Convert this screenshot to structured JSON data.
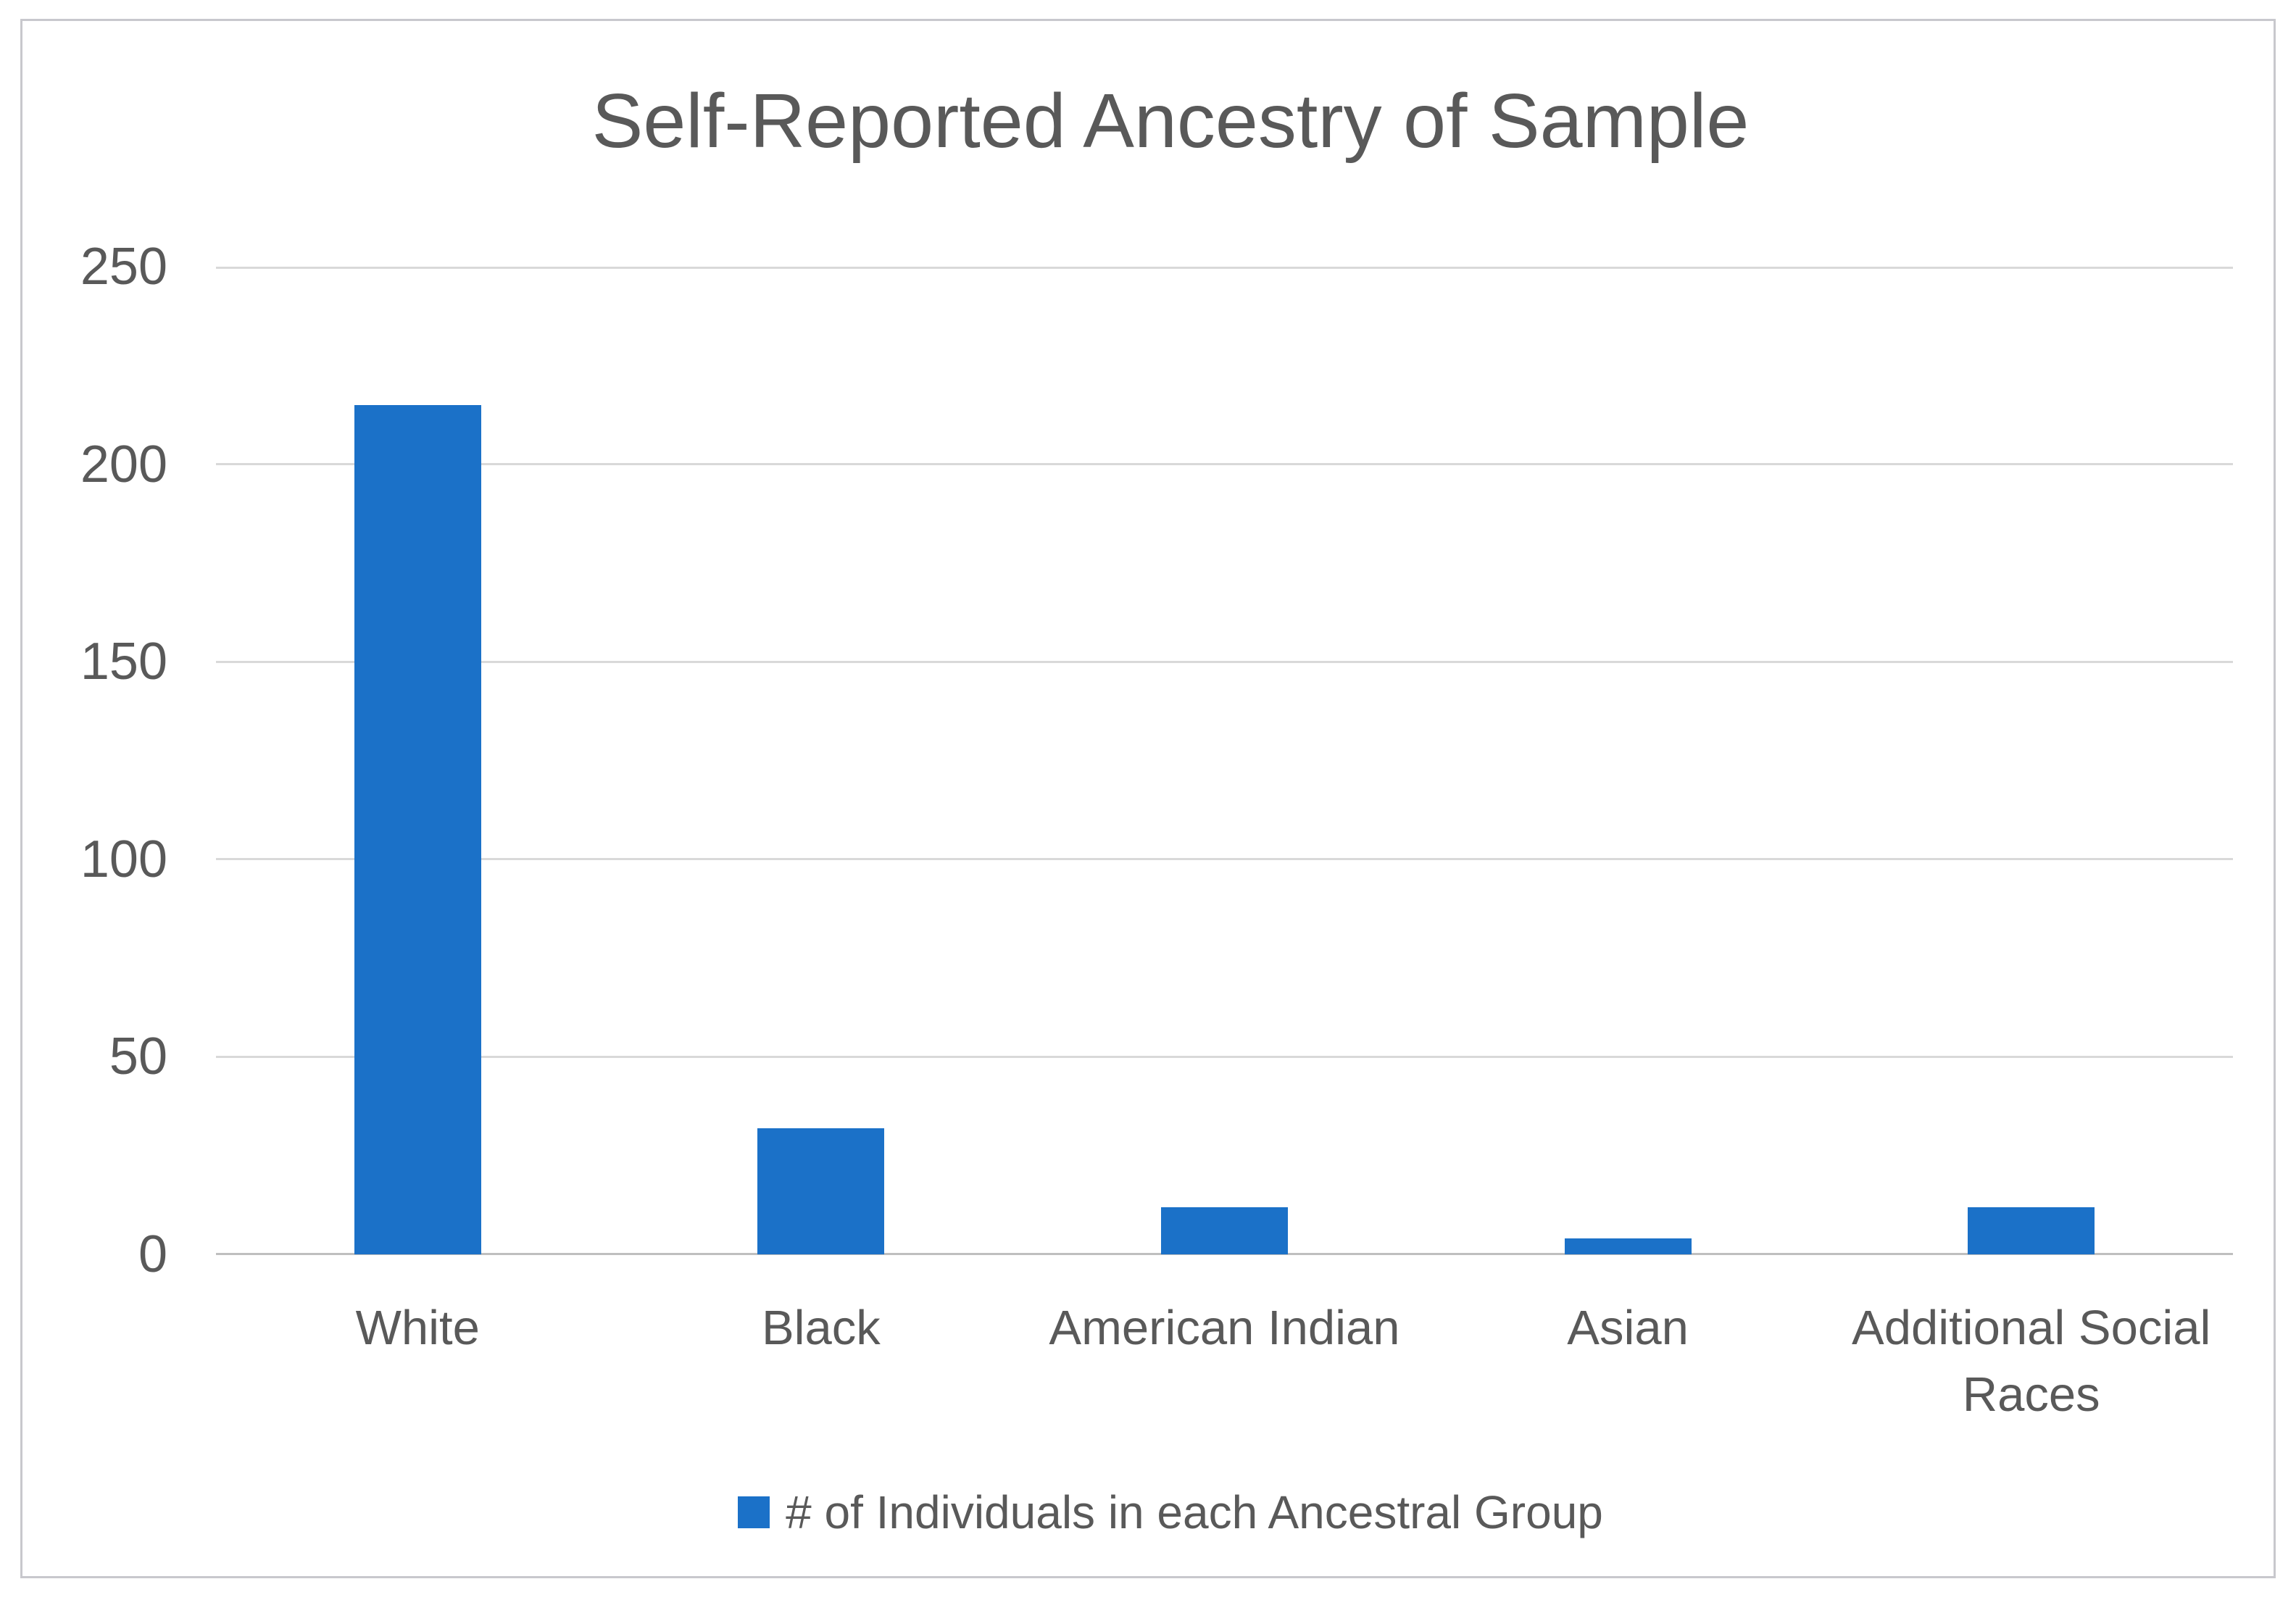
{
  "chart_data": {
    "type": "bar",
    "title": "Self-Reported Ancestry of Sample",
    "categories": [
      "White",
      "Black",
      "American Indian",
      "Asian",
      "Additional Social Races"
    ],
    "series": [
      {
        "name": "# of Individuals in each Ancestral Group",
        "values": [
          215,
          32,
          12,
          4,
          12
        ]
      }
    ],
    "xlabel": "",
    "ylabel": "",
    "ylim": [
      0,
      250
    ],
    "yticks": [
      0,
      50,
      100,
      150,
      200,
      250
    ],
    "grid": true,
    "legend_position": "bottom",
    "colors": {
      "bar": "#1b71c8",
      "gridline": "#d9d9d9",
      "axis_line": "#bfbfbf",
      "text": "#595959",
      "frame_border": "#c8c8cd",
      "background": "#ffffff"
    }
  }
}
